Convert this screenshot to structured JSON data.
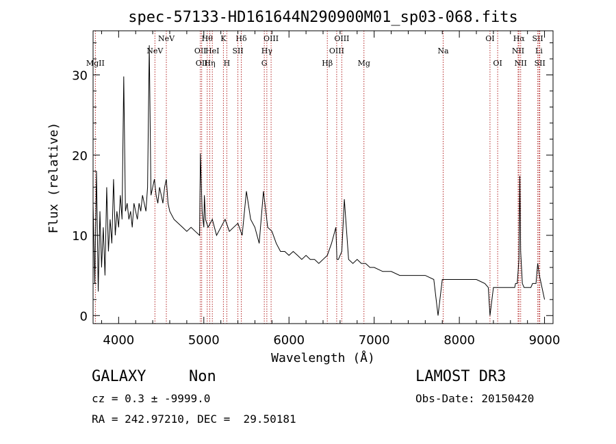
{
  "chart_data": {
    "type": "line",
    "title": "spec-57133-HD161644N290900M01_sp03-068.fits",
    "xlabel": "Wavelength (Å)",
    "ylabel": "Flux (relative)",
    "xlim": [
      3700,
      9100
    ],
    "ylim": [
      -1,
      35.5
    ],
    "xticks": [
      4000,
      5000,
      6000,
      7000,
      8000,
      9000
    ],
    "yticks": [
      0,
      10,
      20,
      30
    ],
    "grid": false,
    "line_color": "#000000",
    "marker_color": "#b22222",
    "series": [
      {
        "x": [
          3700,
          3720,
          3740,
          3760,
          3780,
          3800,
          3820,
          3840,
          3860,
          3880,
          3900,
          3920,
          3940,
          3960,
          3980,
          4000,
          4020,
          4040,
          4060,
          4080,
          4100,
          4120,
          4140,
          4160,
          4180,
          4200,
          4220,
          4240,
          4260,
          4280,
          4300,
          4320,
          4340,
          4360,
          4380,
          4400,
          4420,
          4440,
          4460,
          4480,
          4500,
          4520,
          4540,
          4560,
          4580,
          4600,
          4650,
          4700,
          4750,
          4800,
          4850,
          4900,
          4950,
          4960,
          4980,
          5000,
          5007,
          5020,
          5050,
          5100,
          5150,
          5200,
          5250,
          5300,
          5350,
          5400,
          5450,
          5500,
          5550,
          5600,
          5650,
          5700,
          5750,
          5800,
          5850,
          5900,
          5950,
          6000,
          6050,
          6100,
          6150,
          6200,
          6250,
          6300,
          6350,
          6400,
          6450,
          6500,
          6550,
          6563,
          6580,
          6600,
          6620,
          6650,
          6700,
          6750,
          6800,
          6850,
          6900,
          6950,
          7000,
          7100,
          7200,
          7300,
          7400,
          7500,
          7600,
          7700,
          7750,
          7800,
          7850,
          7900,
          8000,
          8100,
          8200,
          8300,
          8340,
          8360,
          8400,
          8450,
          8500,
          8550,
          8600,
          8650,
          8660,
          8680,
          8700,
          8710,
          8720,
          8740,
          8760,
          8780,
          8800,
          8820,
          8840,
          8860,
          8880,
          8900,
          8920,
          8940,
          8960,
          8980,
          9000
        ],
        "y": [
          14,
          4,
          18,
          3,
          13,
          6,
          11,
          5,
          16,
          8,
          12,
          9,
          17,
          10,
          13,
          11,
          15,
          12,
          29.8,
          13,
          14,
          12,
          13,
          11,
          14,
          13,
          12,
          14,
          13,
          15,
          14,
          13,
          16,
          33.7,
          15,
          16,
          17,
          15,
          14,
          16,
          15,
          14,
          16,
          17,
          14,
          13,
          12,
          11.5,
          11,
          10.5,
          11,
          10.5,
          10,
          20.2,
          13,
          11,
          15,
          12,
          11,
          12,
          10,
          11,
          12,
          10.5,
          11,
          11.5,
          10,
          15.5,
          12,
          11,
          9,
          15.5,
          11,
          10.5,
          9,
          8,
          8,
          7.5,
          8,
          7.5,
          7,
          7.5,
          7,
          7,
          6.5,
          7,
          7.5,
          9,
          11,
          7,
          7,
          7.5,
          8,
          14.5,
          7,
          6.5,
          7,
          6.5,
          6.5,
          6,
          6,
          5.5,
          5.5,
          5,
          5,
          5,
          5,
          4.5,
          0,
          4.5,
          4.5,
          4.5,
          4.5,
          4.5,
          4.5,
          4,
          3.5,
          0,
          3.5,
          3.5,
          3.5,
          3.5,
          3.5,
          3.5,
          4,
          4,
          7,
          17.4,
          8,
          4,
          3.5,
          3.5,
          3.5,
          3.5,
          3.5,
          4,
          4,
          4,
          6.5,
          5,
          4,
          3,
          2
        ]
      }
    ],
    "line_markers": [
      {
        "x": 3727,
        "label": "MgII",
        "row": 2
      },
      {
        "x": 4426,
        "label": "NeV",
        "row": 1
      },
      {
        "x": 4560,
        "label": "NeV",
        "row": 0
      },
      {
        "x": 4959,
        "label": "OII",
        "row": 1
      },
      {
        "x": 4975,
        "label": "OII",
        "row": 2
      },
      {
        "x": 5040,
        "label": "Hθ",
        "row": 0
      },
      {
        "x": 5100,
        "label": "HeI",
        "row": 1
      },
      {
        "x": 5070,
        "label": "Hη",
        "row": 2
      },
      {
        "x": 5230,
        "label": "K",
        "row": 0
      },
      {
        "x": 5270,
        "label": "H",
        "row": 2
      },
      {
        "x": 5440,
        "label": "Hδ",
        "row": 0
      },
      {
        "x": 5400,
        "label": "SII",
        "row": 1
      },
      {
        "x": 5710,
        "label": "G",
        "row": 2
      },
      {
        "x": 5740,
        "label": "Hγ",
        "row": 1
      },
      {
        "x": 5790,
        "label": "OIII",
        "row": 0
      },
      {
        "x": 6450,
        "label": "Hβ",
        "row": 2
      },
      {
        "x": 6560,
        "label": "OIII",
        "row": 1
      },
      {
        "x": 6620,
        "label": "OIII",
        "row": 0
      },
      {
        "x": 6880,
        "label": "Mg",
        "row": 2
      },
      {
        "x": 7810,
        "label": "Na",
        "row": 1
      },
      {
        "x": 8360,
        "label": "OI",
        "row": 0
      },
      {
        "x": 8450,
        "label": "OI",
        "row": 2
      },
      {
        "x": 8690,
        "label": "NII",
        "row": 1
      },
      {
        "x": 8700,
        "label": "Hα",
        "row": 0
      },
      {
        "x": 8720,
        "label": "NII",
        "row": 2
      },
      {
        "x": 8920,
        "label": "SII",
        "row": 0
      },
      {
        "x": 8935,
        "label": "Li",
        "row": 1
      },
      {
        "x": 8945,
        "label": "SII",
        "row": 2
      }
    ]
  },
  "info": {
    "class": "GALAXY",
    "subclass": "Non",
    "survey": "LAMOST DR3",
    "cz": "cz = 0.3 ± -9999.0",
    "obs_date": "Obs-Date: 20150420",
    "radec": "RA = 242.97210, DEC =  29.50181"
  }
}
